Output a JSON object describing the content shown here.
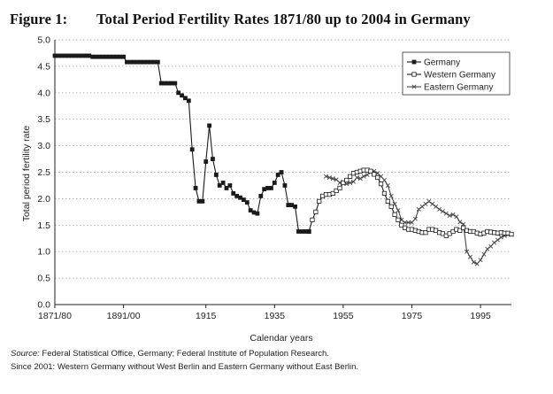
{
  "figure": {
    "number": "Figure 1:",
    "title": "Total Period Fertility Rates 1871/80 up to 2004 in Germany"
  },
  "notes": {
    "source_label": "Source:",
    "source_text": " Federal Statistical Office, Germany; Federal Institute of Population Research.",
    "note": "Since 2001: Western Germany without West Berlin and Eastern Germany without East Berlin."
  },
  "chart_data": {
    "type": "line",
    "xlabel": "Calendar years",
    "ylabel": "Total period fertility rate",
    "xlim": [
      1871,
      2004
    ],
    "ylim": [
      0,
      5
    ],
    "grid": "horizontal dotted",
    "legend_position": "top-right",
    "x_ticks": [
      {
        "value": 1871,
        "label": "1871/80"
      },
      {
        "value": 1891,
        "label": "1891/00"
      },
      {
        "value": 1915,
        "label": "1915"
      },
      {
        "value": 1935,
        "label": "1935"
      },
      {
        "value": 1955,
        "label": "1955"
      },
      {
        "value": 1975,
        "label": "1975"
      },
      {
        "value": 1995,
        "label": "1995"
      }
    ],
    "y_ticks": [
      "0.0",
      "0.5",
      "1.0",
      "1.5",
      "2.0",
      "2.5",
      "3.0",
      "3.5",
      "4.0",
      "4.5",
      "5.0"
    ],
    "series": [
      {
        "name": "Germany",
        "color": "#1a1a1a",
        "marker": "square-filled",
        "x": [
          1871,
          1872,
          1873,
          1874,
          1875,
          1876,
          1877,
          1878,
          1879,
          1880,
          1881,
          1882,
          1883,
          1884,
          1885,
          1886,
          1887,
          1888,
          1889,
          1890,
          1891,
          1892,
          1893,
          1894,
          1895,
          1896,
          1897,
          1898,
          1899,
          1900,
          1901,
          1902,
          1903,
          1904,
          1905,
          1906,
          1907,
          1908,
          1909,
          1910,
          1911,
          1912,
          1913,
          1914,
          1915,
          1916,
          1917,
          1918,
          1919,
          1920,
          1921,
          1922,
          1923,
          1924,
          1925,
          1926,
          1927,
          1928,
          1929,
          1930,
          1931,
          1932,
          1933,
          1934,
          1935,
          1936,
          1937,
          1938,
          1939,
          1940,
          1941,
          1942,
          1943,
          1944,
          1945
        ],
        "y": [
          4.7,
          4.7,
          4.7,
          4.7,
          4.7,
          4.7,
          4.7,
          4.7,
          4.7,
          4.7,
          4.7,
          4.68,
          4.68,
          4.68,
          4.68,
          4.68,
          4.68,
          4.68,
          4.68,
          4.68,
          4.68,
          4.58,
          4.58,
          4.58,
          4.58,
          4.58,
          4.58,
          4.58,
          4.58,
          4.58,
          4.58,
          4.18,
          4.18,
          4.18,
          4.18,
          4.18,
          4.0,
          3.95,
          3.9,
          3.85,
          2.93,
          2.2,
          1.95,
          1.95,
          2.7,
          3.38,
          2.75,
          2.45,
          2.25,
          2.3,
          2.2,
          2.25,
          2.1,
          2.05,
          2.02,
          1.98,
          1.93,
          1.78,
          1.74,
          1.72,
          2.05,
          2.18,
          2.2,
          2.2,
          2.3,
          2.45,
          2.5,
          2.25,
          1.88,
          1.88,
          1.85,
          1.38,
          1.38,
          1.38,
          1.38
        ]
      },
      {
        "name": "Western Germany",
        "color": "#1a1a1a",
        "marker": "square-open",
        "x": [
          1945,
          1946,
          1947,
          1948,
          1949,
          1950,
          1951,
          1952,
          1953,
          1954,
          1955,
          1956,
          1957,
          1958,
          1959,
          1960,
          1961,
          1962,
          1963,
          1964,
          1965,
          1966,
          1967,
          1968,
          1969,
          1970,
          1971,
          1972,
          1973,
          1974,
          1975,
          1976,
          1977,
          1978,
          1979,
          1980,
          1981,
          1982,
          1983,
          1984,
          1985,
          1986,
          1987,
          1988,
          1989,
          1990,
          1991,
          1992,
          1993,
          1994,
          1995,
          1996,
          1997,
          1998,
          1999,
          2000,
          2001,
          2002,
          2003,
          2004
        ],
        "y": [
          1.38,
          1.6,
          1.75,
          1.95,
          2.05,
          2.08,
          2.08,
          2.1,
          2.15,
          2.2,
          2.3,
          2.35,
          2.42,
          2.48,
          2.5,
          2.52,
          2.54,
          2.54,
          2.52,
          2.46,
          2.4,
          2.28,
          2.1,
          1.95,
          1.85,
          1.7,
          1.6,
          1.5,
          1.45,
          1.42,
          1.42,
          1.4,
          1.38,
          1.36,
          1.36,
          1.42,
          1.42,
          1.4,
          1.36,
          1.34,
          1.3,
          1.34,
          1.38,
          1.42,
          1.4,
          1.45,
          1.4,
          1.38,
          1.38,
          1.35,
          1.33,
          1.35,
          1.38,
          1.37,
          1.36,
          1.35,
          1.36,
          1.35,
          1.35,
          1.33
        ]
      },
      {
        "name": "Eastern Germany",
        "color": "#444444",
        "marker": "x",
        "x": [
          1950,
          1951,
          1952,
          1953,
          1954,
          1955,
          1956,
          1957,
          1958,
          1959,
          1960,
          1961,
          1962,
          1963,
          1964,
          1965,
          1966,
          1967,
          1968,
          1969,
          1970,
          1971,
          1972,
          1973,
          1974,
          1975,
          1976,
          1977,
          1978,
          1979,
          1980,
          1981,
          1982,
          1983,
          1984,
          1985,
          1986,
          1987,
          1988,
          1989,
          1990,
          1991,
          1992,
          1993,
          1994,
          1995,
          1996,
          1997,
          1998,
          1999,
          2000,
          2001,
          2002,
          2003,
          2004
        ],
        "y": [
          2.42,
          2.4,
          2.38,
          2.36,
          2.3,
          2.32,
          2.28,
          2.3,
          2.32,
          2.4,
          2.38,
          2.42,
          2.45,
          2.5,
          2.52,
          2.48,
          2.42,
          2.35,
          2.25,
          2.05,
          1.9,
          1.78,
          1.6,
          1.55,
          1.55,
          1.55,
          1.62,
          1.8,
          1.85,
          1.9,
          1.95,
          1.9,
          1.85,
          1.8,
          1.76,
          1.72,
          1.68,
          1.7,
          1.66,
          1.56,
          1.52,
          1.0,
          0.9,
          0.8,
          0.77,
          0.84,
          0.95,
          1.05,
          1.1,
          1.17,
          1.22,
          1.27,
          1.3,
          1.32,
          1.32
        ]
      }
    ]
  }
}
